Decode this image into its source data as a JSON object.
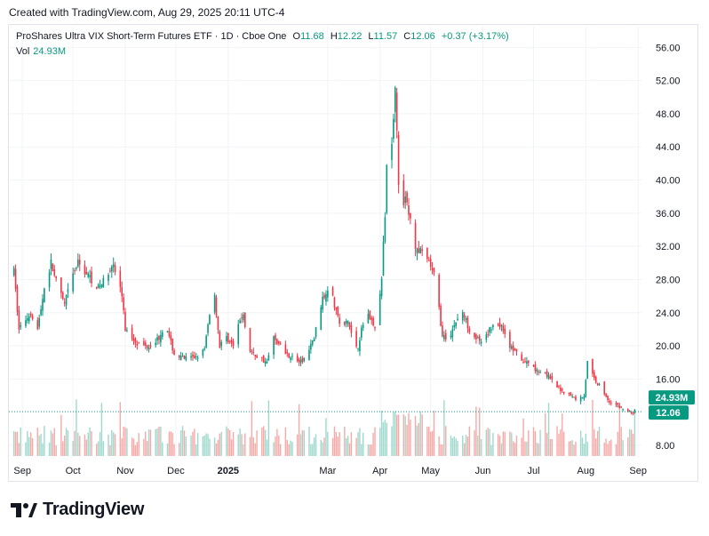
{
  "caption": "Created with TradingView.com, Aug 29, 2025 20:11 UTC-4",
  "legend": {
    "name": "ProShares Ultra VIX Short-Term Futures ETF · 1D · Cboe One",
    "open_label": "O",
    "open": "11.68",
    "high_label": "H",
    "high": "12.22",
    "low_label": "L",
    "low": "11.57",
    "close_label": "C",
    "close": "12.06",
    "change": "+0.37 (+3.17%)",
    "vol_label": "Vol",
    "vol": "24.93M"
  },
  "badges": {
    "volume": "24.93M",
    "price": "12.06"
  },
  "colors": {
    "up": "#089981",
    "down": "#f23645",
    "up_vol": "#9fd8cc",
    "down_vol": "#f7a9a7"
  },
  "brand": "TradingView",
  "chart_data": {
    "type": "candlestick",
    "y_ticks": [
      "56.00",
      "52.00",
      "48.00",
      "44.00",
      "40.00",
      "36.00",
      "32.00",
      "28.00",
      "24.00",
      "20.00",
      "16.00",
      "8.00"
    ],
    "ylim": [
      6.5,
      58.5
    ],
    "x_ticks": [
      {
        "label": "Sep",
        "day": 5,
        "bold": false
      },
      {
        "label": "Oct",
        "day": 35,
        "bold": false
      },
      {
        "label": "Nov",
        "day": 66,
        "bold": false
      },
      {
        "label": "Dec",
        "day": 96,
        "bold": false
      },
      {
        "label": "2025",
        "day": 127,
        "bold": true
      },
      {
        "label": "Mar",
        "day": 186,
        "bold": false
      },
      {
        "label": "Apr",
        "day": 217,
        "bold": false
      },
      {
        "label": "May",
        "day": 247,
        "bold": false
      },
      {
        "label": "Jun",
        "day": 278,
        "bold": false
      },
      {
        "label": "Jul",
        "day": 308,
        "bold": false
      },
      {
        "label": "Aug",
        "day": 339,
        "bold": false
      },
      {
        "label": "Sep",
        "day": 370,
        "bold": false
      }
    ],
    "xlim": [
      -3,
      372
    ],
    "last_close": 12.06,
    "series_points": [
      [
        0,
        29
      ],
      [
        3,
        22
      ],
      [
        6,
        23
      ],
      [
        10,
        24
      ],
      [
        14,
        22
      ],
      [
        18,
        27
      ],
      [
        22,
        30
      ],
      [
        26,
        27
      ],
      [
        30,
        25
      ],
      [
        34,
        28
      ],
      [
        38,
        30
      ],
      [
        42,
        29
      ],
      [
        46,
        28
      ],
      [
        50,
        27
      ],
      [
        54,
        28
      ],
      [
        58,
        30
      ],
      [
        62,
        28
      ],
      [
        64,
        26
      ],
      [
        66,
        22
      ],
      [
        70,
        21
      ],
      [
        75,
        20
      ],
      [
        80,
        20
      ],
      [
        86,
        21
      ],
      [
        90,
        23
      ],
      [
        92,
        21
      ],
      [
        95,
        19
      ],
      [
        100,
        18.5
      ],
      [
        106,
        18.5
      ],
      [
        110,
        19
      ],
      [
        113,
        19.5
      ],
      [
        116,
        24
      ],
      [
        118,
        28
      ],
      [
        120,
        24
      ],
      [
        122,
        20
      ],
      [
        126,
        21
      ],
      [
        130,
        20
      ],
      [
        134,
        23
      ],
      [
        136,
        24
      ],
      [
        138,
        20
      ],
      [
        142,
        19
      ],
      [
        146,
        18.5
      ],
      [
        150,
        18
      ],
      [
        154,
        21
      ],
      [
        158,
        20
      ],
      [
        162,
        19
      ],
      [
        166,
        18.5
      ],
      [
        170,
        18
      ],
      [
        174,
        19
      ],
      [
        178,
        21
      ],
      [
        182,
        25
      ],
      [
        186,
        27
      ],
      [
        188,
        28
      ],
      [
        190,
        25
      ],
      [
        194,
        22
      ],
      [
        198,
        23
      ],
      [
        202,
        20
      ],
      [
        204,
        20
      ],
      [
        206,
        22
      ],
      [
        210,
        24
      ],
      [
        214,
        22
      ],
      [
        218,
        28
      ],
      [
        220,
        36
      ],
      [
        222,
        48
      ],
      [
        224,
        44
      ],
      [
        226,
        52
      ],
      [
        228,
        40
      ],
      [
        230,
        35
      ],
      [
        232,
        38
      ],
      [
        234,
        36
      ],
      [
        236,
        34
      ],
      [
        238,
        32
      ],
      [
        242,
        31
      ],
      [
        246,
        30
      ],
      [
        250,
        28
      ],
      [
        254,
        21
      ],
      [
        258,
        21
      ],
      [
        262,
        23
      ],
      [
        266,
        24
      ],
      [
        270,
        22
      ],
      [
        274,
        21
      ],
      [
        278,
        20
      ],
      [
        282,
        22
      ],
      [
        286,
        23
      ],
      [
        290,
        22
      ],
      [
        294,
        20
      ],
      [
        298,
        19
      ],
      [
        302,
        18
      ],
      [
        306,
        18
      ],
      [
        310,
        17
      ],
      [
        314,
        17
      ],
      [
        318,
        16
      ],
      [
        322,
        15
      ],
      [
        326,
        14.5
      ],
      [
        330,
        14
      ],
      [
        334,
        13.5
      ],
      [
        338,
        14
      ],
      [
        340,
        18
      ],
      [
        342,
        17
      ],
      [
        344,
        16
      ],
      [
        348,
        15
      ],
      [
        352,
        13.5
      ],
      [
        356,
        13
      ],
      [
        360,
        12.5
      ],
      [
        364,
        12
      ],
      [
        368,
        12.06
      ]
    ]
  }
}
